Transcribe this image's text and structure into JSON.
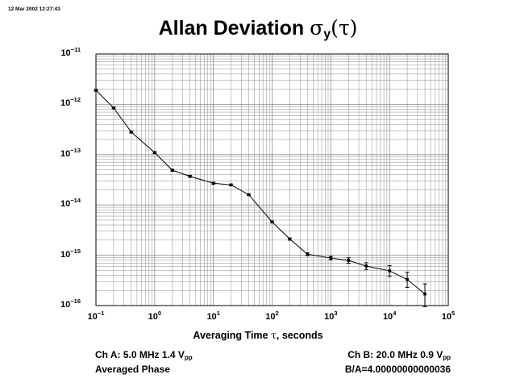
{
  "timestamp": "12 Mar 2002 12:27:43",
  "chart_data": {
    "type": "line",
    "title_main": "Allan Deviation",
    "title_symbol": "σ",
    "title_subscript": "y",
    "title_arg": "(τ)",
    "xlabel_pre": "Averaging Time",
    "xlabel_sym": "τ",
    "xlabel_post": ", seconds",
    "x_scale": "log",
    "y_scale": "log",
    "xlim": [
      0.1,
      100000
    ],
    "ylim": [
      1e-16,
      1e-11
    ],
    "grid": true,
    "x_ticks": [
      {
        "base": "10",
        "exp": "−1"
      },
      {
        "base": "10",
        "exp": "0"
      },
      {
        "base": "10",
        "exp": "1"
      },
      {
        "base": "10",
        "exp": "2"
      },
      {
        "base": "10",
        "exp": "3"
      },
      {
        "base": "10",
        "exp": "4"
      },
      {
        "base": "10",
        "exp": "5"
      }
    ],
    "y_ticks": [
      {
        "base": "10",
        "exp": "−11"
      },
      {
        "base": "10",
        "exp": "−12"
      },
      {
        "base": "10",
        "exp": "−13"
      },
      {
        "base": "10",
        "exp": "−14"
      },
      {
        "base": "10",
        "exp": "−15"
      },
      {
        "base": "10",
        "exp": "−16"
      }
    ],
    "series": [
      {
        "x": [
          0.1,
          0.2,
          0.4,
          1,
          2,
          4,
          10,
          20,
          40,
          100,
          200,
          400,
          1000,
          2000,
          4000,
          10000,
          20000,
          40000
        ],
        "y": [
          1.9e-12,
          8.5e-13,
          2.8e-13,
          1.1e-13,
          4.9e-14,
          3.7e-14,
          2.7e-14,
          2.5e-14,
          1.6e-14,
          4.6e-15,
          2.1e-15,
          1.05e-15,
          8.8e-16,
          7.9e-16,
          6.1e-16,
          4.9e-16,
          3.3e-16,
          1.7e-16
        ],
        "yerr_low": [
          1.85e-12,
          8.2e-13,
          2.7e-13,
          1.05e-13,
          4.7e-14,
          3.55e-14,
          2.6e-14,
          2.4e-14,
          1.55e-14,
          4.4e-15,
          2e-15,
          9.8e-16,
          8.1e-16,
          6.9e-16,
          5.2e-16,
          3.8e-16,
          2.3e-16,
          9.5e-17
        ],
        "yerr_high": [
          1.95e-12,
          8.8e-13,
          2.9e-13,
          1.15e-13,
          5.1e-14,
          3.85e-14,
          2.8e-14,
          2.6e-14,
          1.65e-14,
          4.8e-15,
          2.2e-15,
          1.12e-15,
          9.5e-16,
          8.9e-16,
          7.1e-16,
          6.2e-16,
          4.6e-16,
          2.7e-16
        ]
      }
    ],
    "color_line": "#000000",
    "color_grid": "#8c8c8c"
  },
  "footer": {
    "left_line1_pre": "Ch A: 5.0 MHz 1.4 V",
    "left_line1_sub": "pp",
    "left_line2": "Averaged Phase",
    "right_line1_pre": "Ch B: 20.0 MHz 0.9 V",
    "right_line1_sub": "pp",
    "right_line2": "B/A=4.00000000000036"
  }
}
